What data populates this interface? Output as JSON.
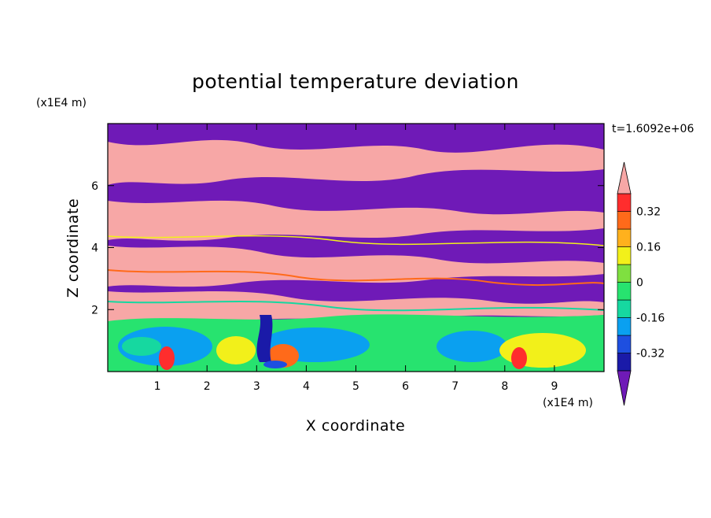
{
  "chart_data": {
    "type": "heatmap",
    "title": "potential temperature deviation",
    "xlabel": "X coordinate",
    "ylabel": "Z coordinate",
    "x_unit_label": "(x1E4 m)",
    "y_unit_label": "(x1E4 m)",
    "time_label": "t=1.6092e+06",
    "xlim": [
      0,
      10
    ],
    "ylim": [
      0,
      8
    ],
    "x_ticks": [
      "1",
      "2",
      "3",
      "4",
      "5",
      "6",
      "7",
      "8",
      "9"
    ],
    "y_ticks": [
      "2",
      "4",
      "6"
    ],
    "colorbar": {
      "levels": [
        -0.4,
        -0.32,
        -0.24,
        -0.16,
        -0.08,
        0,
        0.08,
        0.16,
        0.24,
        0.32,
        0.4
      ],
      "colors": [
        "#1a1aa8",
        "#1e4fe0",
        "#0aa0f0",
        "#16d8a0",
        "#27e36f",
        "#7fe040",
        "#f2f01a",
        "#ffb11d",
        "#ff6a1a",
        "#ff2d2d"
      ],
      "under_color": "#6f1ab7",
      "over_color": "#f7a7a6",
      "labels": [
        "0.32",
        "0.16",
        "0",
        "-0.16",
        "-0.32"
      ],
      "label_values": [
        0.32,
        0.16,
        0,
        -0.16,
        -0.32
      ]
    }
  }
}
